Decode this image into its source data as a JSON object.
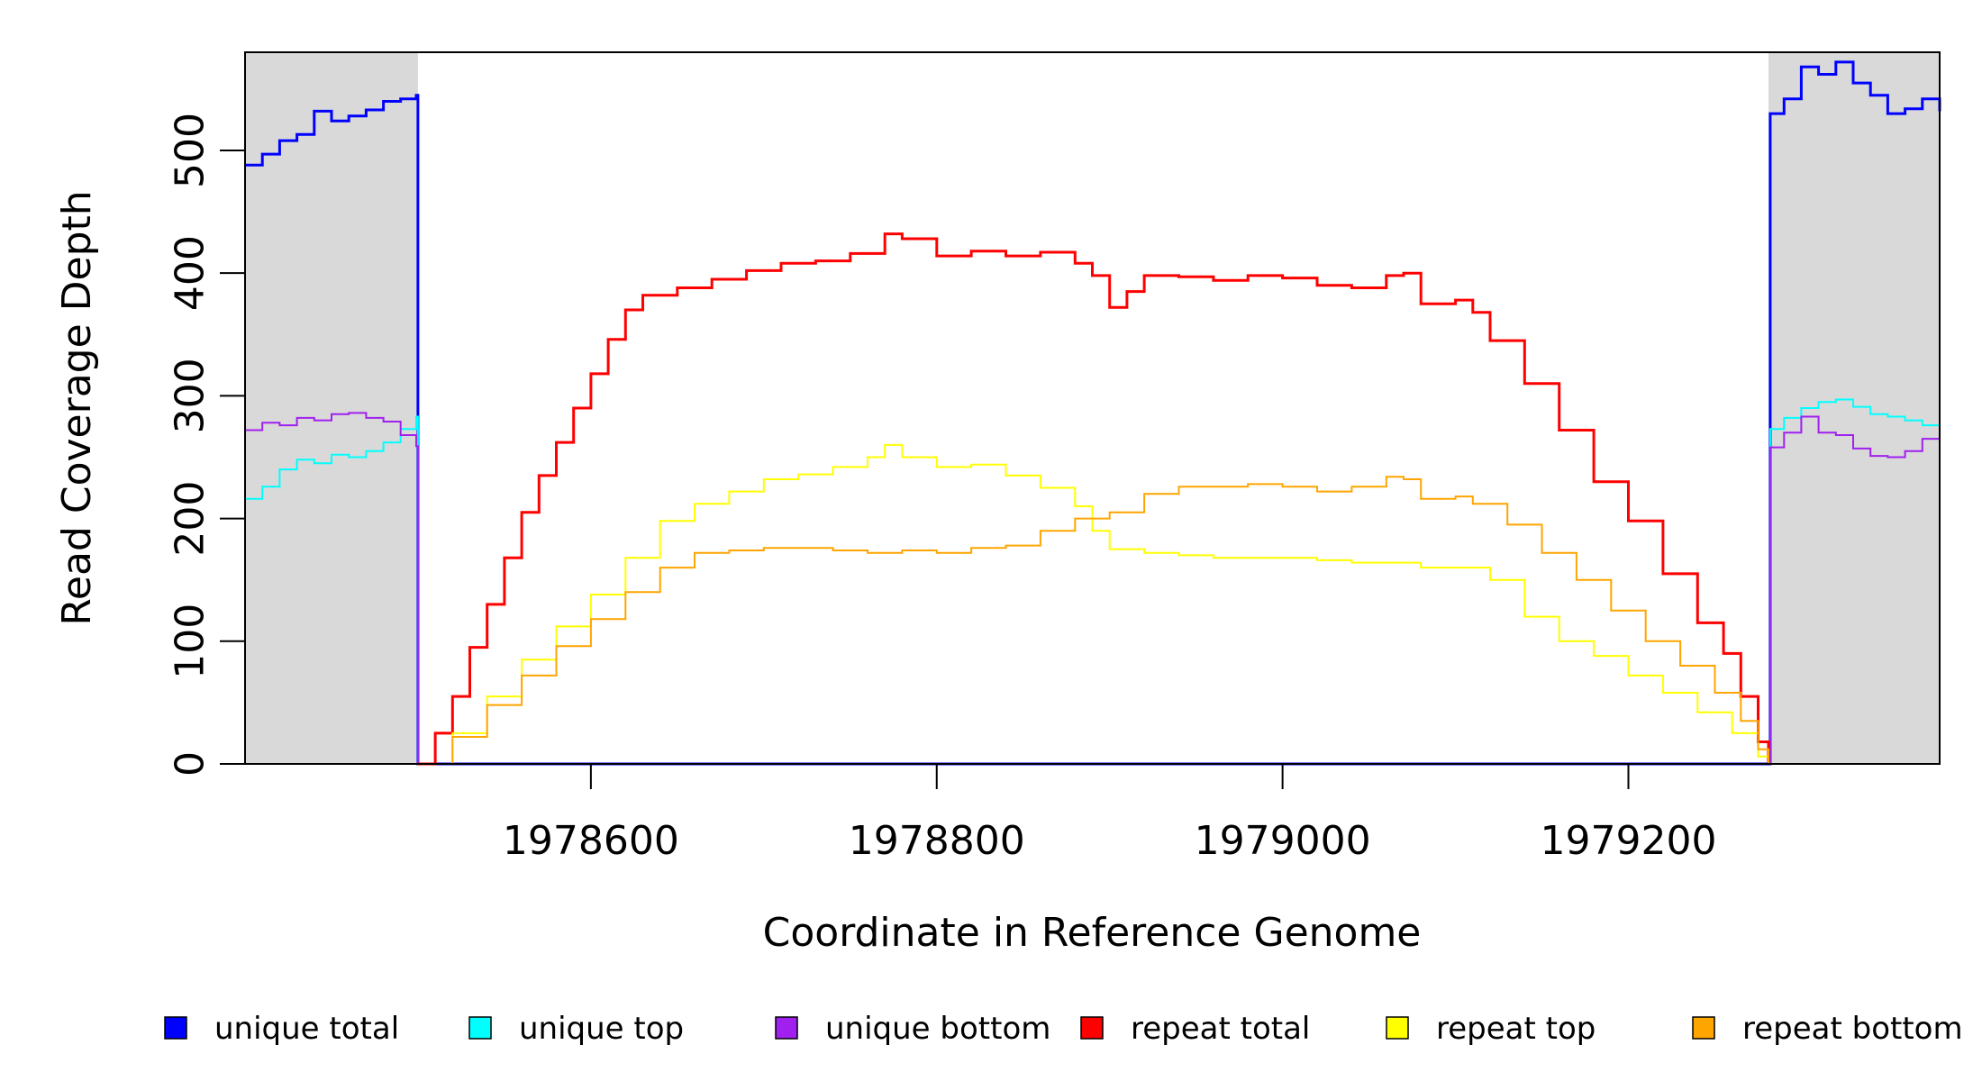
{
  "chart_data": {
    "type": "line",
    "title": "",
    "xlabel": "Coordinate in Reference Genome",
    "ylabel": "Read Coverage Depth",
    "xlim": [
      1978400,
      1979380
    ],
    "ylim": [
      0,
      580
    ],
    "x_ticks": [
      1978600,
      1978800,
      1979000,
      1979200
    ],
    "x_tick_labels": [
      "1978600",
      "1978800",
      "1979000",
      "1979200"
    ],
    "y_ticks": [
      0,
      100,
      200,
      300,
      400,
      500
    ],
    "y_tick_labels": [
      "0",
      "100",
      "200",
      "300",
      "400",
      "500"
    ],
    "shaded_regions": [
      {
        "x_start": 1978400,
        "x_end": 1978500,
        "color": "#d9d9d9"
      },
      {
        "x_start": 1979281,
        "x_end": 1979380,
        "color": "#d9d9d9"
      }
    ],
    "legend_position": "bottom",
    "series": [
      {
        "name": "unique total",
        "color": "#0000ff",
        "width": 3,
        "points": [
          [
            1978400,
            488
          ],
          [
            1978410,
            497
          ],
          [
            1978420,
            508
          ],
          [
            1978430,
            513
          ],
          [
            1978440,
            532
          ],
          [
            1978450,
            524
          ],
          [
            1978460,
            528
          ],
          [
            1978470,
            533
          ],
          [
            1978480,
            540
          ],
          [
            1978490,
            542
          ],
          [
            1978499,
            545
          ],
          [
            1978500,
            0
          ],
          [
            1979281,
            0
          ],
          [
            1979282,
            530
          ],
          [
            1979290,
            542
          ],
          [
            1979300,
            568
          ],
          [
            1979310,
            562
          ],
          [
            1979320,
            572
          ],
          [
            1979330,
            555
          ],
          [
            1979340,
            545
          ],
          [
            1979350,
            530
          ],
          [
            1979360,
            534
          ],
          [
            1979370,
            542
          ],
          [
            1979380,
            532
          ]
        ]
      },
      {
        "name": "unique top",
        "color": "#00ffff",
        "width": 2,
        "points": [
          [
            1978400,
            216
          ],
          [
            1978410,
            226
          ],
          [
            1978420,
            240
          ],
          [
            1978430,
            248
          ],
          [
            1978440,
            245
          ],
          [
            1978450,
            252
          ],
          [
            1978460,
            250
          ],
          [
            1978470,
            255
          ],
          [
            1978480,
            262
          ],
          [
            1978490,
            273
          ],
          [
            1978499,
            283
          ],
          [
            1978500,
            0
          ],
          [
            1979281,
            0
          ],
          [
            1979282,
            273
          ],
          [
            1979290,
            282
          ],
          [
            1979300,
            290
          ],
          [
            1979310,
            295
          ],
          [
            1979320,
            297
          ],
          [
            1979330,
            291
          ],
          [
            1979340,
            285
          ],
          [
            1979350,
            283
          ],
          [
            1979360,
            280
          ],
          [
            1979370,
            276
          ],
          [
            1979380,
            270
          ]
        ]
      },
      {
        "name": "unique bottom",
        "color": "#a020f0",
        "width": 2,
        "points": [
          [
            1978400,
            272
          ],
          [
            1978410,
            278
          ],
          [
            1978420,
            276
          ],
          [
            1978430,
            282
          ],
          [
            1978440,
            280
          ],
          [
            1978450,
            285
          ],
          [
            1978460,
            286
          ],
          [
            1978470,
            282
          ],
          [
            1978480,
            279
          ],
          [
            1978490,
            268
          ],
          [
            1978499,
            259
          ],
          [
            1978500,
            0
          ],
          [
            1979281,
            0
          ],
          [
            1979282,
            258
          ],
          [
            1979290,
            270
          ],
          [
            1979300,
            283
          ],
          [
            1979310,
            270
          ],
          [
            1979320,
            268
          ],
          [
            1979330,
            257
          ],
          [
            1979340,
            251
          ],
          [
            1979350,
            250
          ],
          [
            1979360,
            255
          ],
          [
            1979370,
            265
          ],
          [
            1979380,
            262
          ]
        ]
      },
      {
        "name": "repeat total",
        "color": "#ff0000",
        "width": 3,
        "points": [
          [
            1978500,
            0
          ],
          [
            1978510,
            25
          ],
          [
            1978520,
            55
          ],
          [
            1978530,
            95
          ],
          [
            1978540,
            130
          ],
          [
            1978550,
            168
          ],
          [
            1978560,
            205
          ],
          [
            1978570,
            235
          ],
          [
            1978580,
            262
          ],
          [
            1978590,
            290
          ],
          [
            1978600,
            318
          ],
          [
            1978610,
            346
          ],
          [
            1978620,
            370
          ],
          [
            1978630,
            382
          ],
          [
            1978650,
            388
          ],
          [
            1978670,
            395
          ],
          [
            1978690,
            402
          ],
          [
            1978710,
            408
          ],
          [
            1978730,
            410
          ],
          [
            1978750,
            416
          ],
          [
            1978770,
            432
          ],
          [
            1978780,
            428
          ],
          [
            1978800,
            414
          ],
          [
            1978820,
            418
          ],
          [
            1978840,
            414
          ],
          [
            1978860,
            417
          ],
          [
            1978880,
            408
          ],
          [
            1978890,
            398
          ],
          [
            1978900,
            372
          ],
          [
            1978910,
            385
          ],
          [
            1978920,
            398
          ],
          [
            1978940,
            397
          ],
          [
            1978960,
            394
          ],
          [
            1978980,
            398
          ],
          [
            1979000,
            396
          ],
          [
            1979020,
            390
          ],
          [
            1979040,
            388
          ],
          [
            1979060,
            398
          ],
          [
            1979070,
            400
          ],
          [
            1979080,
            375
          ],
          [
            1979100,
            378
          ],
          [
            1979110,
            368
          ],
          [
            1979120,
            345
          ],
          [
            1979140,
            310
          ],
          [
            1979160,
            272
          ],
          [
            1979180,
            230
          ],
          [
            1979200,
            198
          ],
          [
            1979220,
            155
          ],
          [
            1979240,
            115
          ],
          [
            1979255,
            90
          ],
          [
            1979265,
            55
          ],
          [
            1979275,
            18
          ],
          [
            1979281,
            0
          ]
        ]
      },
      {
        "name": "repeat top",
        "color": "#ffff00",
        "width": 2,
        "points": [
          [
            1978500,
            0
          ],
          [
            1978520,
            25
          ],
          [
            1978540,
            55
          ],
          [
            1978560,
            85
          ],
          [
            1978580,
            112
          ],
          [
            1978600,
            138
          ],
          [
            1978620,
            168
          ],
          [
            1978640,
            198
          ],
          [
            1978660,
            212
          ],
          [
            1978680,
            222
          ],
          [
            1978700,
            232
          ],
          [
            1978720,
            236
          ],
          [
            1978740,
            242
          ],
          [
            1978760,
            250
          ],
          [
            1978770,
            260
          ],
          [
            1978780,
            250
          ],
          [
            1978800,
            242
          ],
          [
            1978820,
            244
          ],
          [
            1978840,
            235
          ],
          [
            1978860,
            225
          ],
          [
            1978880,
            210
          ],
          [
            1978890,
            190
          ],
          [
            1978900,
            175
          ],
          [
            1978920,
            172
          ],
          [
            1978940,
            170
          ],
          [
            1978960,
            168
          ],
          [
            1978980,
            168
          ],
          [
            1979000,
            168
          ],
          [
            1979020,
            166
          ],
          [
            1979040,
            164
          ],
          [
            1979060,
            164
          ],
          [
            1979080,
            160
          ],
          [
            1979100,
            160
          ],
          [
            1979120,
            150
          ],
          [
            1979140,
            120
          ],
          [
            1979160,
            100
          ],
          [
            1979180,
            88
          ],
          [
            1979200,
            72
          ],
          [
            1979220,
            58
          ],
          [
            1979240,
            42
          ],
          [
            1979260,
            25
          ],
          [
            1979275,
            6
          ],
          [
            1979281,
            0
          ]
        ]
      },
      {
        "name": "repeat bottom",
        "color": "#ffa500",
        "width": 2,
        "points": [
          [
            1978400,
            0
          ],
          [
            1978500,
            0
          ],
          [
            1978520,
            22
          ],
          [
            1978540,
            48
          ],
          [
            1978560,
            72
          ],
          [
            1978580,
            96
          ],
          [
            1978600,
            118
          ],
          [
            1978620,
            140
          ],
          [
            1978640,
            160
          ],
          [
            1978660,
            172
          ],
          [
            1978680,
            174
          ],
          [
            1978700,
            176
          ],
          [
            1978720,
            176
          ],
          [
            1978740,
            174
          ],
          [
            1978760,
            172
          ],
          [
            1978780,
            174
          ],
          [
            1978800,
            172
          ],
          [
            1978820,
            176
          ],
          [
            1978840,
            178
          ],
          [
            1978860,
            190
          ],
          [
            1978880,
            200
          ],
          [
            1978900,
            205
          ],
          [
            1978920,
            220
          ],
          [
            1978940,
            226
          ],
          [
            1978960,
            226
          ],
          [
            1978980,
            228
          ],
          [
            1979000,
            226
          ],
          [
            1979020,
            222
          ],
          [
            1979040,
            226
          ],
          [
            1979060,
            234
          ],
          [
            1979070,
            232
          ],
          [
            1979080,
            216
          ],
          [
            1979100,
            218
          ],
          [
            1979110,
            212
          ],
          [
            1979130,
            195
          ],
          [
            1979150,
            172
          ],
          [
            1979170,
            150
          ],
          [
            1979190,
            125
          ],
          [
            1979210,
            100
          ],
          [
            1979230,
            80
          ],
          [
            1979250,
            58
          ],
          [
            1979265,
            35
          ],
          [
            1979275,
            12
          ],
          [
            1979281,
            0
          ],
          [
            1979380,
            0
          ]
        ]
      }
    ]
  }
}
